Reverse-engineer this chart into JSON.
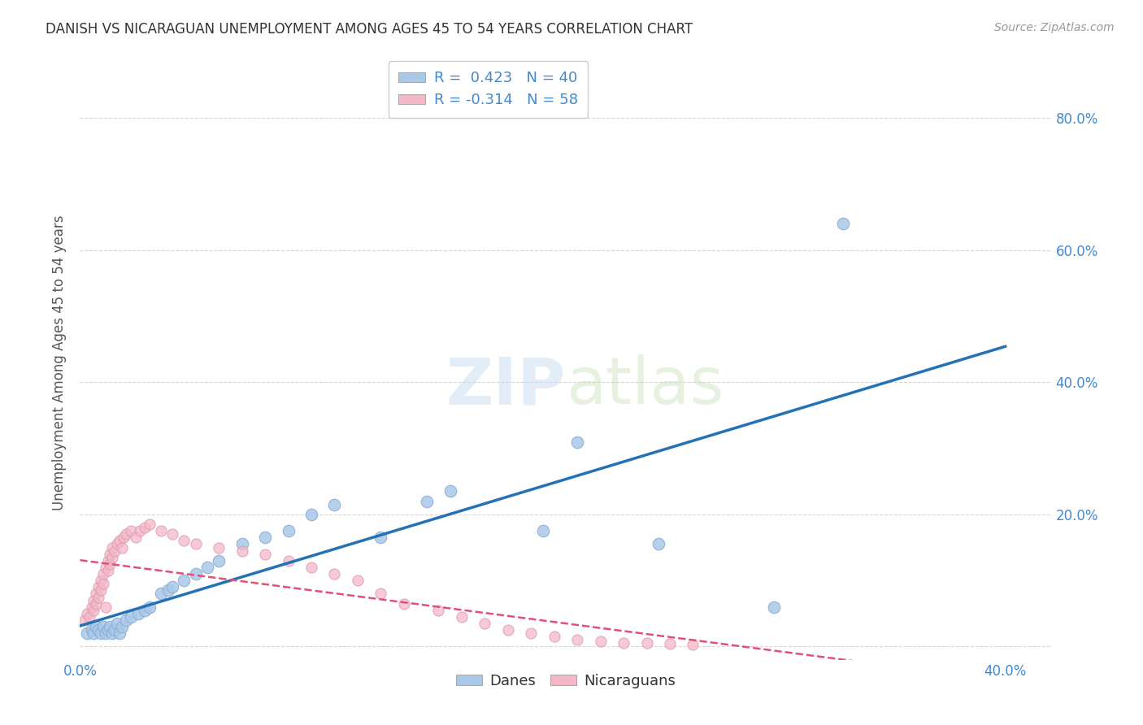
{
  "title": "DANISH VS NICARAGUAN UNEMPLOYMENT AMONG AGES 45 TO 54 YEARS CORRELATION CHART",
  "source": "Source: ZipAtlas.com",
  "ylabel": "Unemployment Among Ages 45 to 54 years",
  "xlim": [
    0.0,
    0.42
  ],
  "ylim": [
    -0.02,
    0.88
  ],
  "danes_R": 0.423,
  "danes_N": 40,
  "nicaraguans_R": -0.314,
  "nicaraguans_N": 58,
  "danes_color": "#aac8e8",
  "danes_edge_color": "#88aad0",
  "danes_line_color": "#2272b5",
  "nicaraguans_color": "#f4b8c8",
  "nicaraguans_edge_color": "#d898b0",
  "nicaraguans_line_color": "#e0507a",
  "background_color": "#ffffff",
  "grid_color": "#cccccc",
  "tick_color": "#4488cc",
  "title_color": "#333333",
  "source_color": "#999999",
  "ylabel_color": "#555555",
  "watermark_color": "#ddeeff",
  "danes_x": [
    0.003,
    0.005,
    0.006,
    0.007,
    0.008,
    0.009,
    0.01,
    0.011,
    0.012,
    0.013,
    0.014,
    0.015,
    0.016,
    0.017,
    0.018,
    0.02,
    0.022,
    0.025,
    0.028,
    0.03,
    0.035,
    0.038,
    0.04,
    0.045,
    0.05,
    0.055,
    0.06,
    0.07,
    0.08,
    0.09,
    0.1,
    0.11,
    0.13,
    0.15,
    0.16,
    0.2,
    0.215,
    0.25,
    0.3,
    0.33
  ],
  "danes_y": [
    0.02,
    0.025,
    0.02,
    0.03,
    0.025,
    0.02,
    0.03,
    0.02,
    0.025,
    0.03,
    0.02,
    0.025,
    0.035,
    0.02,
    0.03,
    0.04,
    0.045,
    0.05,
    0.055,
    0.06,
    0.08,
    0.085,
    0.09,
    0.1,
    0.11,
    0.12,
    0.13,
    0.155,
    0.165,
    0.175,
    0.2,
    0.215,
    0.165,
    0.22,
    0.235,
    0.175,
    0.31,
    0.155,
    0.06,
    0.64
  ],
  "nicaraguans_x": [
    0.002,
    0.003,
    0.004,
    0.005,
    0.006,
    0.006,
    0.007,
    0.007,
    0.008,
    0.008,
    0.009,
    0.009,
    0.01,
    0.01,
    0.011,
    0.011,
    0.012,
    0.012,
    0.013,
    0.013,
    0.014,
    0.014,
    0.015,
    0.016,
    0.017,
    0.018,
    0.019,
    0.02,
    0.022,
    0.024,
    0.026,
    0.028,
    0.03,
    0.035,
    0.04,
    0.045,
    0.05,
    0.06,
    0.07,
    0.08,
    0.09,
    0.1,
    0.11,
    0.12,
    0.13,
    0.14,
    0.155,
    0.165,
    0.175,
    0.185,
    0.195,
    0.205,
    0.215,
    0.225,
    0.235,
    0.245,
    0.255,
    0.265
  ],
  "nicaraguans_y": [
    0.04,
    0.05,
    0.045,
    0.06,
    0.055,
    0.07,
    0.065,
    0.08,
    0.075,
    0.09,
    0.085,
    0.1,
    0.095,
    0.11,
    0.06,
    0.12,
    0.115,
    0.13,
    0.125,
    0.14,
    0.135,
    0.15,
    0.145,
    0.155,
    0.16,
    0.15,
    0.165,
    0.17,
    0.175,
    0.165,
    0.175,
    0.18,
    0.185,
    0.175,
    0.17,
    0.16,
    0.155,
    0.15,
    0.145,
    0.14,
    0.13,
    0.12,
    0.11,
    0.1,
    0.08,
    0.065,
    0.055,
    0.045,
    0.035,
    0.025,
    0.02,
    0.015,
    0.01,
    0.008,
    0.006,
    0.005,
    0.004,
    0.003
  ]
}
